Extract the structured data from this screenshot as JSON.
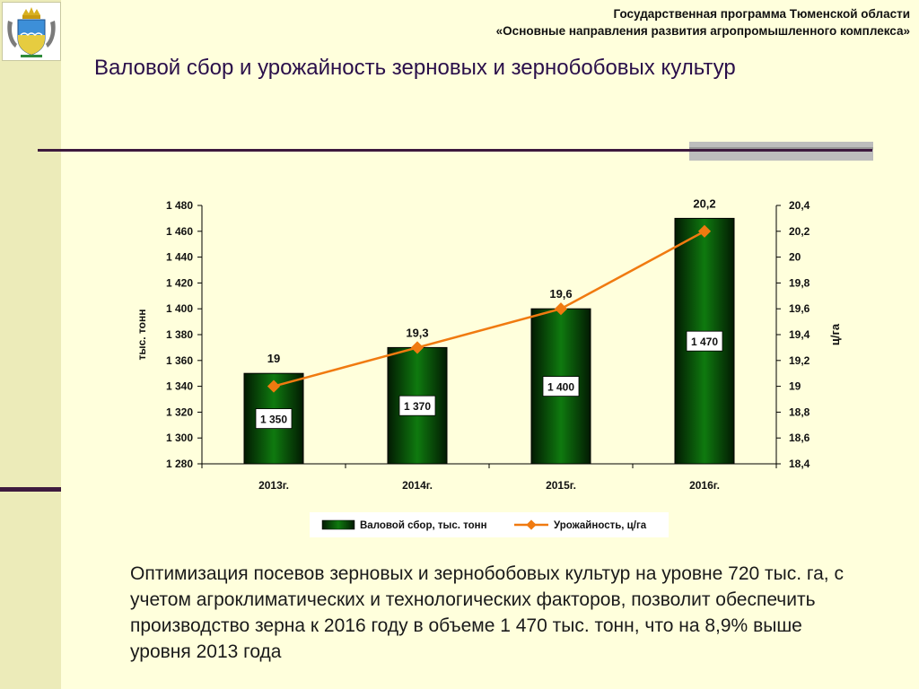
{
  "header": {
    "line1": "Государственная программа Тюменской области",
    "line2": "«Основные направления развития агропромышленного комплекса»"
  },
  "page_title": "Валовой сбор и урожайность зерновых и зернобобовых культур",
  "chart_data": {
    "type": "bar",
    "categories": [
      "2013г.",
      "2014г.",
      "2015г.",
      "2016г."
    ],
    "series": [
      {
        "name": "Валовой сбор, тыс. тонн",
        "type": "bar",
        "axis": "left",
        "values": [
          1350,
          1370,
          1400,
          1470
        ],
        "labels": [
          "1 350",
          "1 370",
          "1 400",
          "1 470"
        ],
        "color": "#0d5e0d"
      },
      {
        "name": "Урожайность, ц/га",
        "type": "line",
        "axis": "right",
        "values": [
          19,
          19.3,
          19.6,
          20.2
        ],
        "labels": [
          "19",
          "19,3",
          "19,6",
          "20,2"
        ],
        "color": "#f07a10"
      }
    ],
    "ylabel": "тыс. тонн",
    "ylabel_right": "ц/га",
    "ylim": [
      1280,
      1480
    ],
    "ylim_right": [
      18.4,
      20.4
    ],
    "yticks": [
      1280,
      1300,
      1320,
      1340,
      1360,
      1380,
      1400,
      1420,
      1440,
      1460,
      1480
    ],
    "ytick_labels": [
      "1 280",
      "1 300",
      "1 320",
      "1 340",
      "1 360",
      "1 380",
      "1 400",
      "1 420",
      "1 440",
      "1 460",
      "1 480"
    ],
    "yticks_right": [
      18.4,
      18.6,
      18.8,
      19,
      19.2,
      19.4,
      19.6,
      19.8,
      20,
      20.2,
      20.4
    ],
    "ytick_labels_right": [
      "18,4",
      "18,6",
      "18,8",
      "19",
      "19,2",
      "19,4",
      "19,6",
      "19,8",
      "20",
      "20,2",
      "20,4"
    ],
    "grid": false,
    "legend_position": "bottom"
  },
  "description": "Оптимизация посевов зерновых и зернобобовых культур на уровне 720 тыс. га, с учетом агроклиматических и технологических факторов, позволит обеспечить производство зерна к 2016 году в объеме 1 470 тыс. тонн, что на 8,9% выше уровня 2013 года"
}
